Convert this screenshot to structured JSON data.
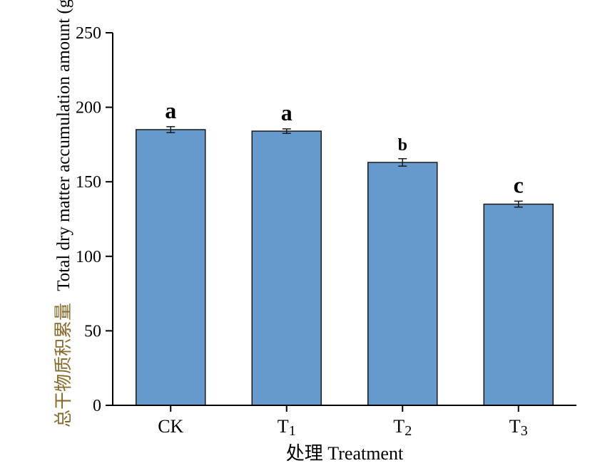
{
  "chart_data": {
    "type": "bar",
    "categories": [
      {
        "base": "CK",
        "sub": ""
      },
      {
        "base": "T",
        "sub": "1"
      },
      {
        "base": "T",
        "sub": "2"
      },
      {
        "base": "T",
        "sub": "3"
      }
    ],
    "values": [
      185,
      184,
      163,
      135
    ],
    "errors": [
      2,
      1.5,
      2.5,
      2
    ],
    "significance": [
      "a",
      "a",
      "b",
      "c"
    ],
    "ylabel_cn": "总干物质积累量",
    "ylabel_en": "Total dry matter accumulation amount (g/pot)",
    "xlabel": "处理  Treatment",
    "ylim": [
      0,
      250
    ],
    "yticks": [
      0,
      50,
      100,
      150,
      200,
      250
    ],
    "bar_color": "#6699cc",
    "grid": false
  }
}
